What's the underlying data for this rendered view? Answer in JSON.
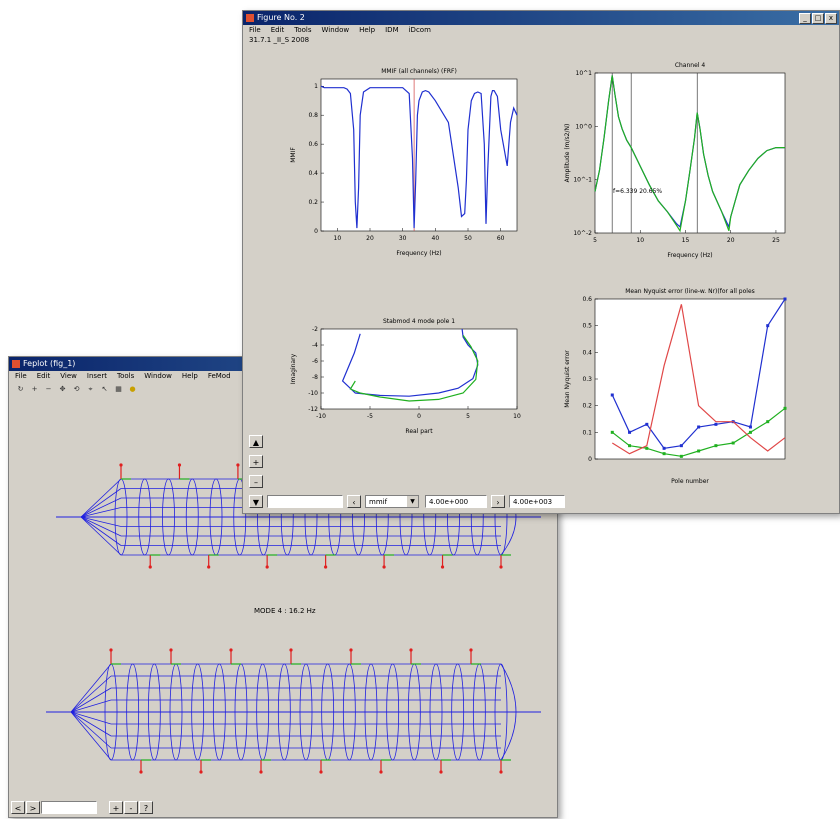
{
  "win1": {
    "title": "Feplot (fig_1)",
    "menu": [
      "File",
      "Edit",
      "View",
      "Insert",
      "Tools",
      "Window",
      "Help",
      "FeMod"
    ],
    "toolbar_icons": [
      "rotate-icon",
      "zoom-in-icon",
      "zoom-out-icon",
      "pan-icon",
      "orbit-icon",
      "select-icon",
      "arrow-icon",
      "mesh-icon",
      "bulb-icon"
    ],
    "mode_label": "MODE 4 : 16.2 Hz",
    "bottom_buttons": [
      "+",
      "-",
      "<",
      ">",
      "?"
    ],
    "colors": {
      "mesh": "#2020e0",
      "arrows_red": "#e02020",
      "arrows_green": "#20b020"
    }
  },
  "win2": {
    "title": "Figure No. 2",
    "menu": [
      "File",
      "Edit",
      "Tools",
      "Window",
      "Help",
      "IDM",
      "iDcom"
    ],
    "subtitle": "31.7.1 _II_S 2008",
    "side_buttons": [
      "▲",
      "+",
      "–",
      "▼"
    ],
    "footer": {
      "edit_value": "",
      "dropdown_value": "mmif",
      "field_a": "4.00e+000",
      "field_b": "4.00e+003"
    }
  },
  "chart_data": [
    {
      "type": "line",
      "title": "MMIF (all channels) (FRF)",
      "xlabel": "Frequency (Hz)",
      "ylabel": "MMIF",
      "xlim": [
        5,
        65
      ],
      "ylim": [
        0,
        1.05
      ],
      "xticks": [
        10,
        20,
        30,
        40,
        50,
        60
      ],
      "yticks": [
        0,
        0.2,
        0.4,
        0.6,
        0.8,
        1
      ],
      "series": [
        {
          "values_x": [
            5,
            6,
            7,
            8,
            9,
            10,
            11,
            12,
            13,
            14,
            15,
            15.5,
            16,
            16.5,
            17,
            18,
            20,
            22,
            26,
            30,
            32,
            33,
            33.5,
            34,
            34.5,
            35,
            36,
            37,
            38,
            40,
            44,
            47,
            48,
            49,
            49.5,
            50,
            51,
            52,
            53,
            54,
            55,
            55.5,
            56,
            57,
            57.5,
            58,
            59,
            60,
            62,
            63,
            64,
            65
          ],
          "values_y": [
            1,
            0.99,
            0.99,
            0.99,
            0.99,
            0.99,
            0.99,
            0.99,
            0.98,
            0.95,
            0.7,
            0.2,
            0.02,
            0.3,
            0.8,
            0.96,
            0.99,
            0.99,
            0.99,
            0.99,
            0.95,
            0.5,
            0.02,
            0.35,
            0.8,
            0.9,
            0.96,
            0.97,
            0.96,
            0.9,
            0.75,
            0.3,
            0.1,
            0.12,
            0.35,
            0.7,
            0.9,
            0.95,
            0.96,
            0.95,
            0.6,
            0.05,
            0.4,
            0.93,
            0.97,
            0.97,
            0.93,
            0.7,
            0.45,
            0.75,
            0.85,
            0.8
          ]
        }
      ],
      "markers": [
        33.5
      ]
    },
    {
      "type": "line",
      "title": "Channel 4",
      "xlabel": "Frequency (Hz)",
      "ylabel": "Amplitude (m/s2/N)",
      "yscale": "log",
      "xlim": [
        5,
        26
      ],
      "ylim": [
        0.01,
        10
      ],
      "xticks": [
        5,
        10,
        15,
        20,
        25
      ],
      "yticks": [
        0.01,
        0.1,
        1,
        10
      ],
      "annotation": "f=6.339  20.65%",
      "series": [
        {
          "name": "",
          "color": "#2030d0",
          "x": [
            5,
            5.5,
            6,
            6.5,
            6.9,
            7.2,
            7.6,
            8,
            8.5,
            9,
            10,
            11,
            12,
            13,
            14,
            14.4,
            15,
            15.5,
            16,
            16.3,
            16.6,
            17,
            17.5,
            18,
            19,
            19.8,
            20,
            20.5,
            21,
            22,
            23,
            24,
            25,
            26
          ],
          "y": [
            0.06,
            0.15,
            0.6,
            3,
            9,
            4,
            1.5,
            0.9,
            0.55,
            0.4,
            0.18,
            0.08,
            0.04,
            0.025,
            0.015,
            0.013,
            0.04,
            0.15,
            0.6,
            1.8,
            0.9,
            0.3,
            0.12,
            0.06,
            0.025,
            0.013,
            0.02,
            0.04,
            0.08,
            0.15,
            0.25,
            0.35,
            0.4,
            0.4
          ]
        },
        {
          "name": "",
          "color": "#20b020",
          "x": [
            5,
            5.5,
            6,
            6.5,
            6.9,
            7.2,
            7.6,
            8,
            8.5,
            9,
            10,
            11,
            12,
            13,
            14,
            14.4,
            15,
            15.5,
            16,
            16.3,
            16.6,
            17,
            17.5,
            18,
            19,
            19.8,
            20,
            20.5,
            21,
            22,
            23,
            24,
            25,
            26
          ],
          "y": [
            0.06,
            0.15,
            0.6,
            3,
            9,
            4,
            1.5,
            0.9,
            0.55,
            0.4,
            0.18,
            0.08,
            0.04,
            0.025,
            0.014,
            0.011,
            0.04,
            0.15,
            0.6,
            1.8,
            0.9,
            0.3,
            0.12,
            0.06,
            0.025,
            0.011,
            0.02,
            0.04,
            0.08,
            0.15,
            0.25,
            0.35,
            0.4,
            0.4
          ]
        }
      ],
      "markers": [
        6.9,
        9,
        16.3
      ]
    },
    {
      "type": "line",
      "title": "Stabmod 4 mode pole 1",
      "xlabel": "Real part",
      "ylabel": "Imaginary",
      "xlim": [
        -10,
        10
      ],
      "ylim": [
        -12,
        -2
      ],
      "xticks": [
        -10,
        -5,
        0,
        5,
        10
      ],
      "yticks": [
        -12,
        -10,
        -8,
        -6,
        -4,
        -2
      ],
      "series": [
        {
          "name": "",
          "color": "#2030d0",
          "x": [
            -6,
            -6.6,
            -7.8,
            -6.5,
            -4,
            -1,
            2,
            4,
            5.5,
            6,
            5.8,
            5,
            4.5,
            4.4
          ],
          "y": [
            -2.6,
            -5,
            -8.5,
            -10,
            -10.3,
            -10.4,
            -10,
            -9.4,
            -8.2,
            -6.5,
            -5,
            -4,
            -3,
            -2
          ]
        },
        {
          "name": "",
          "color": "#20b020",
          "x": [
            -6.5,
            -7,
            -6,
            -4,
            -1,
            2,
            4.5,
            5.8,
            6,
            5.3,
            4.5
          ],
          "y": [
            -8.5,
            -9.5,
            -10,
            -10.5,
            -11,
            -10.8,
            -10,
            -8.3,
            -6,
            -4.2,
            -2.8
          ]
        }
      ]
    },
    {
      "type": "line",
      "title": "Mean Nyquist error (line-w. Nr)(for all poles",
      "xlabel": "Pole number",
      "ylabel": "Mean Nyquist error",
      "xlim": [
        0,
        11
      ],
      "ylim": [
        0,
        0.6
      ],
      "xticks": [],
      "yticks": [
        0,
        0.1,
        0.2,
        0.3,
        0.4,
        0.5,
        0.6
      ],
      "series": [
        {
          "name": "",
          "color": "#2030d0",
          "x": [
            1,
            2,
            3,
            4,
            5,
            6,
            7,
            8,
            9,
            10,
            11
          ],
          "y": [
            0.24,
            0.1,
            0.13,
            0.04,
            0.05,
            0.12,
            0.13,
            0.14,
            0.12,
            0.5,
            0.62
          ]
        },
        {
          "name": "",
          "color": "#20b020",
          "x": [
            1,
            2,
            3,
            4,
            5,
            6,
            7,
            8,
            9,
            10,
            11
          ],
          "y": [
            0.1,
            0.05,
            0.04,
            0.02,
            0.01,
            0.03,
            0.05,
            0.06,
            0.1,
            0.14,
            0.19
          ]
        },
        {
          "name": "",
          "color": "#e04848",
          "x": [
            1,
            2,
            3,
            4,
            5,
            6,
            7,
            8,
            9,
            10,
            11
          ],
          "y": [
            0.06,
            0.02,
            0.05,
            0.35,
            0.58,
            0.2,
            0.14,
            0.14,
            0.08,
            0.03,
            0.08
          ]
        }
      ]
    }
  ]
}
